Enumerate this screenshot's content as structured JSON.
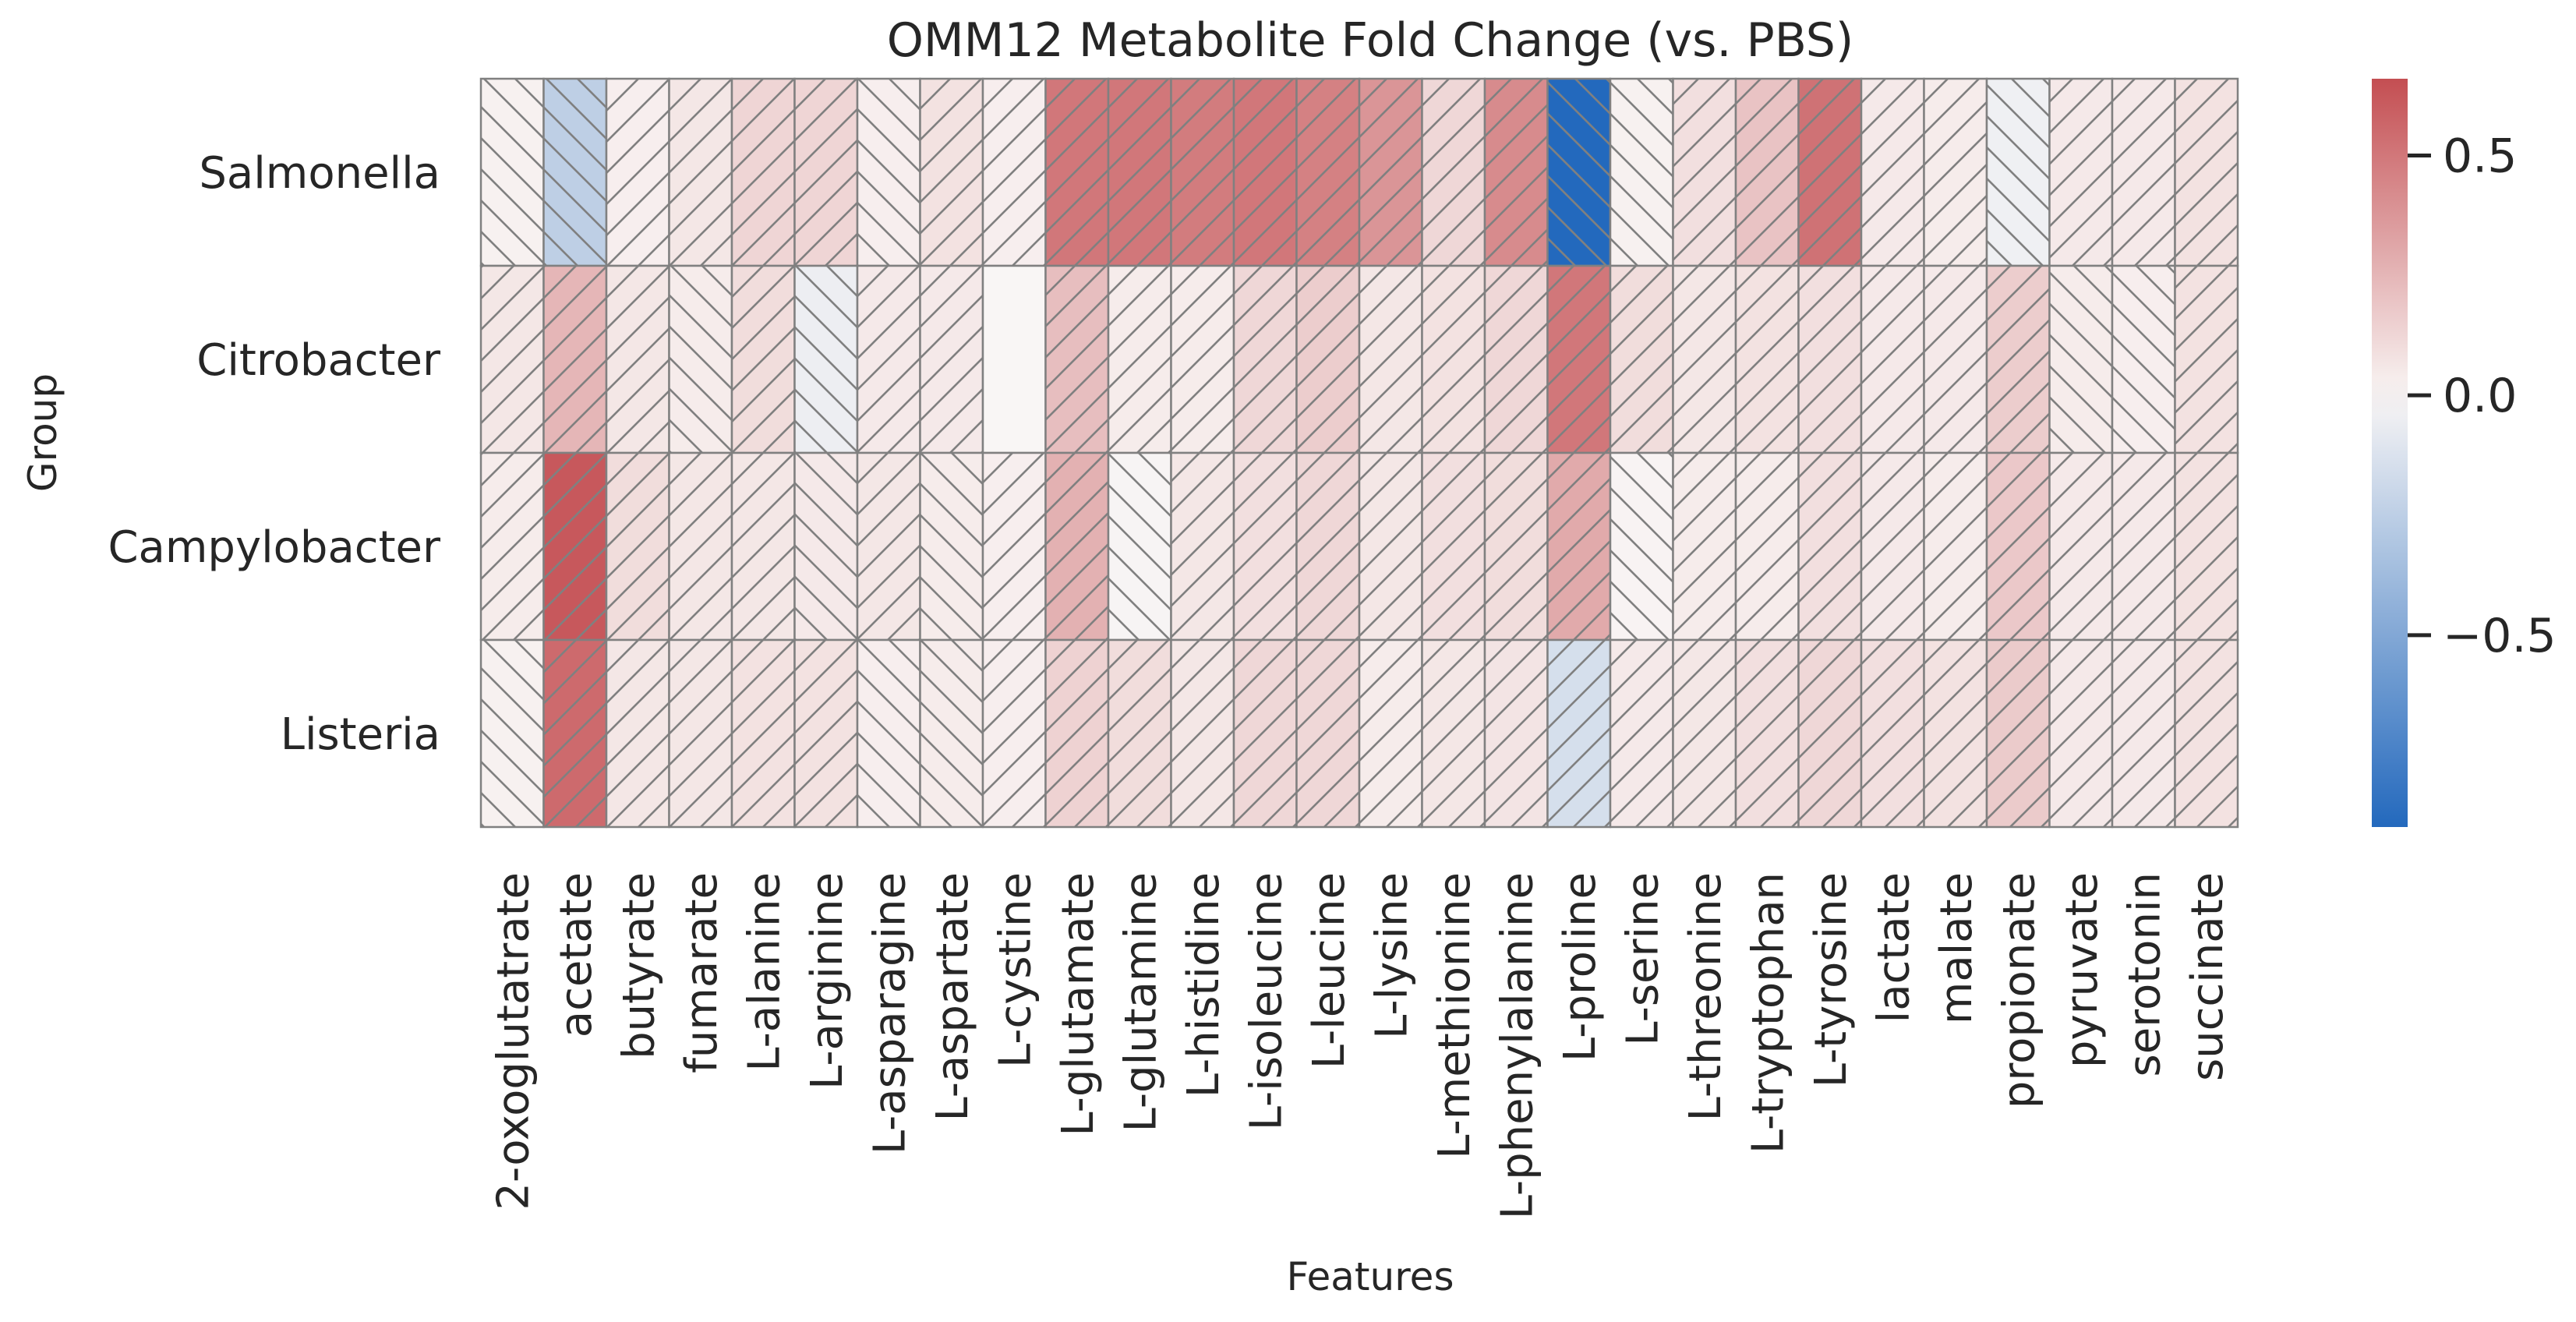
{
  "chart_data": {
    "type": "heatmap",
    "title": "OMM12 Metabolite Fold Change (vs. PBS)",
    "xlabel": "Features",
    "ylabel": "Group",
    "rows": [
      "Salmonella",
      "Citrobacter",
      "Campylobacter",
      "Listeria"
    ],
    "columns": [
      "2-oxoglutatrate",
      "acetate",
      "butyrate",
      "fumarate",
      "L-alanine",
      "L-arginine",
      "L-asparagine",
      "L-aspartate",
      "L-cystine",
      "L-glutamate",
      "L-glutamine",
      "L-histidine",
      "L-isoleucine",
      "L-leucine",
      "L-lysine",
      "L-methionine",
      "L-phenylalanine",
      "L-proline",
      "L-serine",
      "L-threonine",
      "L-tryptophan",
      "L-tyrosine",
      "lactate",
      "malate",
      "propionate",
      "pyruvate",
      "serotonin",
      "succinate"
    ],
    "values": [
      [
        0.02,
        -0.25,
        0.03,
        0.06,
        0.13,
        0.13,
        0.03,
        0.08,
        0.03,
        0.5,
        0.5,
        0.48,
        0.5,
        0.46,
        0.38,
        0.12,
        0.42,
        -0.9,
        0.02,
        0.09,
        0.2,
        0.52,
        0.05,
        0.04,
        -0.04,
        0.05,
        0.05,
        0.08
      ],
      [
        0.06,
        0.25,
        0.06,
        0.04,
        0.1,
        -0.05,
        0.05,
        0.05,
        0.0,
        0.22,
        0.04,
        0.04,
        0.12,
        0.16,
        0.06,
        0.08,
        0.12,
        0.5,
        0.1,
        0.06,
        0.08,
        0.09,
        0.05,
        0.05,
        0.16,
        0.04,
        0.03,
        0.08
      ],
      [
        0.04,
        0.62,
        0.1,
        0.06,
        0.06,
        0.05,
        0.06,
        0.04,
        0.03,
        0.27,
        -0.01,
        0.06,
        0.09,
        0.12,
        0.06,
        0.09,
        0.1,
        0.3,
        0.01,
        0.04,
        0.04,
        0.09,
        0.05,
        0.04,
        0.18,
        0.05,
        0.05,
        0.08
      ],
      [
        0.02,
        0.55,
        0.06,
        0.06,
        0.08,
        0.08,
        0.03,
        0.04,
        0.03,
        0.14,
        0.1,
        0.06,
        0.12,
        0.12,
        0.04,
        0.06,
        0.07,
        -0.15,
        0.05,
        0.06,
        0.09,
        0.12,
        0.09,
        0.08,
        0.17,
        0.05,
        0.05,
        0.08
      ]
    ],
    "hatch": [
      [
        "\\",
        "\\",
        "/",
        "/",
        "/",
        "/",
        "\\",
        "/",
        "/",
        "/",
        "/",
        "/",
        "/",
        "/",
        "/",
        "/",
        "/",
        "\\",
        "\\",
        "/",
        "/",
        "/",
        "/",
        "/",
        "\\",
        "/",
        "/",
        "/"
      ],
      [
        "/",
        "/",
        "/",
        "\\",
        "/",
        "\\",
        "/",
        "/",
        "/",
        "/",
        "/",
        "/",
        "/",
        "/",
        "/",
        "/",
        "/",
        "/",
        "/",
        "/",
        "/",
        "/",
        "/",
        "/",
        "/",
        "\\",
        "\\",
        "/"
      ],
      [
        "/",
        "/",
        "/",
        "/",
        "/",
        "\\",
        "/",
        "\\",
        "/",
        "/",
        "\\",
        "/",
        "/",
        "/",
        "/",
        "/",
        "/",
        "/",
        "\\",
        "/",
        "/",
        "/",
        "/",
        "/",
        "/",
        "/",
        "/",
        "/"
      ],
      [
        "\\",
        "/",
        "/",
        "/",
        "/",
        "/",
        "\\",
        "\\",
        "/",
        "/",
        "/",
        "/",
        "/",
        "/",
        "/",
        "/",
        "/",
        "/",
        "/",
        "/",
        "/",
        "/",
        "/",
        "/",
        "/",
        "/",
        "/",
        "/"
      ]
    ],
    "colorbar": {
      "vmin": -0.9,
      "vmax": 0.66,
      "ticks": [
        0.5,
        0.0,
        -0.5
      ],
      "tick_labels": [
        "0.5",
        "0.0",
        "−0.5"
      ],
      "colormap": "vlag",
      "low_color": "#2369bd",
      "mid_color": "#f9f6f5",
      "high_color": "#c44e52"
    },
    "grid_color": "#808080"
  }
}
